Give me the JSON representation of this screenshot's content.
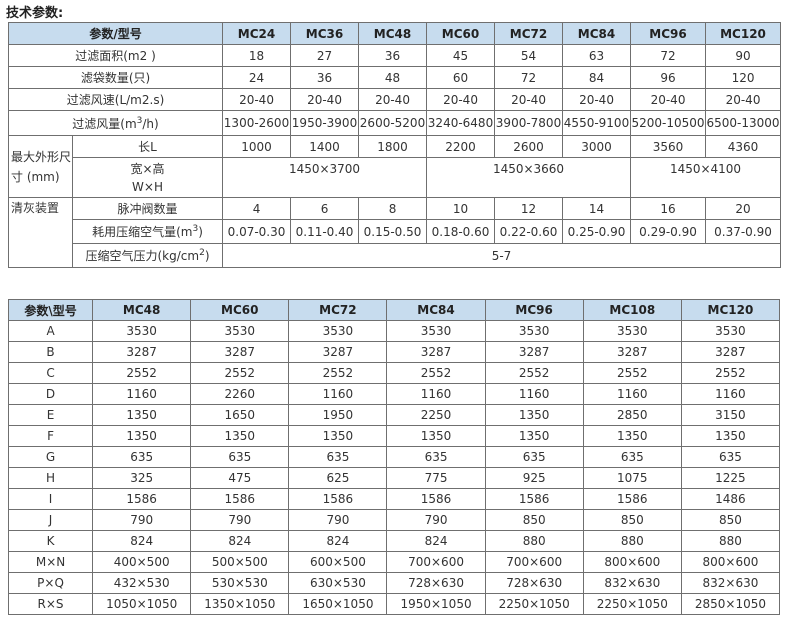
{
  "section_title": "技术参数:",
  "table1": {
    "header_label": "参数/型号",
    "models": [
      "MC24",
      "MC36",
      "MC48",
      "MC60",
      "MC72",
      "MC84",
      "MC96",
      "MC120"
    ],
    "rows": [
      {
        "label": "过滤面积(m2 )",
        "values": [
          "18",
          "27",
          "36",
          "45",
          "54",
          "63",
          "72",
          "90"
        ]
      },
      {
        "label": "滤袋数量(只)",
        "values": [
          "24",
          "36",
          "48",
          "60",
          "72",
          "84",
          "96",
          "120"
        ]
      },
      {
        "label": "过滤风速(L/m2.s)",
        "values": [
          "20-40",
          "20-40",
          "20-40",
          "20-40",
          "20-40",
          "20-40",
          "20-40",
          "20-40"
        ]
      },
      {
        "label_pre": "过滤风量(m",
        "label_sup": "3",
        "label_post": "/h)",
        "values": [
          "1300-2600",
          "1950-3900",
          "2600-5200",
          "3240-6480",
          "3900-7800",
          "4550-9100",
          "5200-10500",
          "6500-13000"
        ]
      }
    ],
    "dim_group_label": "最大外形尺寸 (mm)",
    "dim_length": {
      "label": "长L",
      "values": [
        "1000",
        "1400",
        "1800",
        "2200",
        "2600",
        "3000",
        "3560",
        "4360"
      ]
    },
    "dim_wh": {
      "label_line1": "宽×高",
      "label_line2": "W×H",
      "values": [
        "1450×3700",
        "1450×3660",
        "1450×4100"
      ]
    },
    "clean_group_label": "清灰装置",
    "pulse": {
      "label": "脉冲阀数量",
      "values": [
        "4",
        "6",
        "8",
        "10",
        "12",
        "14",
        "16",
        "20"
      ]
    },
    "air_use": {
      "label_pre": "耗用压缩空气量(m",
      "label_sup": "3",
      "label_post": ")",
      "values": [
        "0.07-0.30",
        "0.11-0.40",
        "0.15-0.50",
        "0.18-0.60",
        "0.22-0.60",
        "0.25-0.90",
        "0.29-0.90",
        "0.37-0.90"
      ]
    },
    "pressure": {
      "label_pre": "压缩空气压力(kg/cm",
      "label_sup": "2",
      "label_post": ")",
      "value": "5-7"
    }
  },
  "table2": {
    "header_label": "参数\\型号",
    "models": [
      "MC48",
      "MC60",
      "MC72",
      "MC84",
      "MC96",
      "MC108",
      "MC120"
    ],
    "rows": [
      {
        "label": "A",
        "values": [
          "3530",
          "3530",
          "3530",
          "3530",
          "3530",
          "3530",
          "3530"
        ]
      },
      {
        "label": "B",
        "values": [
          "3287",
          "3287",
          "3287",
          "3287",
          "3287",
          "3287",
          "3287"
        ]
      },
      {
        "label": "C",
        "values": [
          "2552",
          "2552",
          "2552",
          "2552",
          "2552",
          "2552",
          "2552"
        ]
      },
      {
        "label": "D",
        "values": [
          "1160",
          "2260",
          "1160",
          "1160",
          "1160",
          "1160",
          "1160"
        ]
      },
      {
        "label": "E",
        "values": [
          "1350",
          "1650",
          "1950",
          "2250",
          "1350",
          "2850",
          "3150"
        ]
      },
      {
        "label": "F",
        "values": [
          "1350",
          "1350",
          "1350",
          "1350",
          "1350",
          "1350",
          "1350"
        ]
      },
      {
        "label": "G",
        "values": [
          "635",
          "635",
          "635",
          "635",
          "635",
          "635",
          "635"
        ]
      },
      {
        "label": "H",
        "values": [
          "325",
          "475",
          "625",
          "775",
          "925",
          "1075",
          "1225"
        ]
      },
      {
        "label": "I",
        "values": [
          "1586",
          "1586",
          "1586",
          "1586",
          "1586",
          "1586",
          "1486"
        ]
      },
      {
        "label": "J",
        "values": [
          "790",
          "790",
          "790",
          "790",
          "850",
          "850",
          "850"
        ]
      },
      {
        "label": "K",
        "values": [
          "824",
          "824",
          "824",
          "824",
          "880",
          "880",
          "880"
        ]
      },
      {
        "label": "M×N",
        "values": [
          "400×500",
          "500×500",
          "600×500",
          "700×600",
          "700×600",
          "800×600",
          "800×600"
        ]
      },
      {
        "label": "P×Q",
        "values": [
          "432×530",
          "530×530",
          "630×530",
          "728×630",
          "728×630",
          "832×630",
          "832×630"
        ]
      },
      {
        "label": "R×S",
        "values": [
          "1050×1050",
          "1350×1050",
          "1650×1050",
          "1950×1050",
          "2250×1050",
          "2250×1050",
          "2850×1050"
        ]
      }
    ]
  }
}
